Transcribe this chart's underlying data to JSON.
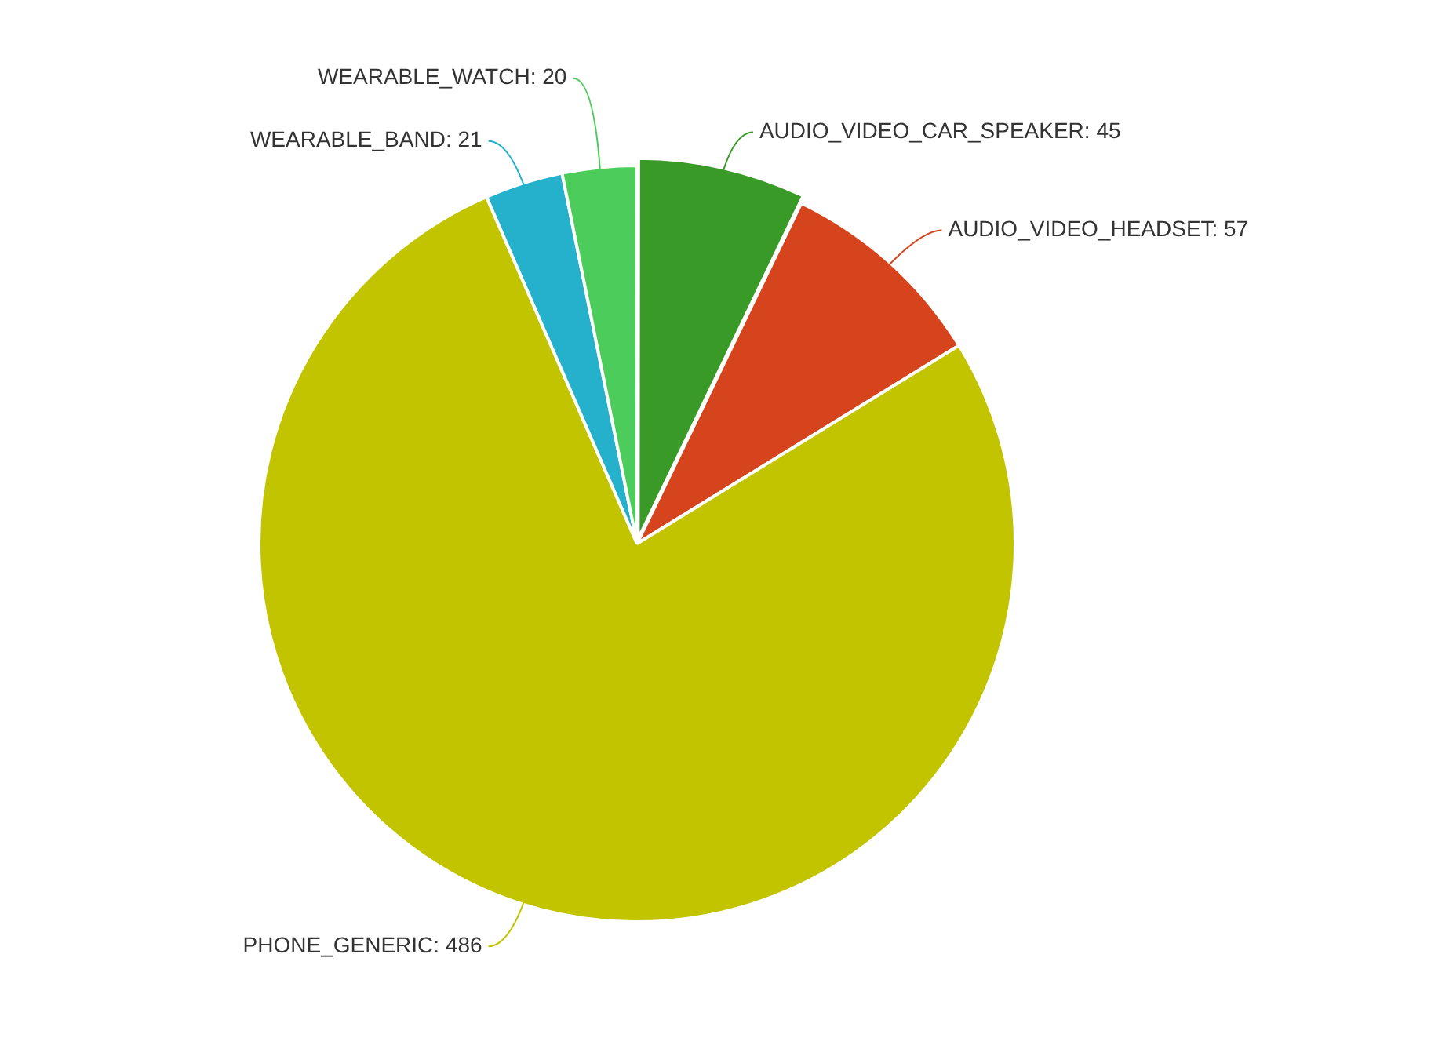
{
  "chart_data": {
    "type": "pie",
    "categories": [
      "AUDIO_VIDEO_CAR_SPEAKER",
      "AUDIO_VIDEO_HEADSET",
      "PHONE_GENERIC",
      "WEARABLE_BAND",
      "WEARABLE_WATCH"
    ],
    "values": [
      45,
      57,
      486,
      21,
      20
    ],
    "colors": [
      "#3a9a28",
      "#d5441c",
      "#c2c400",
      "#25b0cc",
      "#4ccc5a"
    ],
    "value_labels": [
      ": 45",
      ": 57",
      ": 486",
      ": 21",
      ": 20"
    ],
    "legend": false
  }
}
